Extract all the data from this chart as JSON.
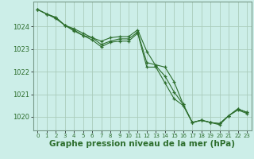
{
  "background_color": "#cceee8",
  "grid_color": "#aaccbb",
  "line_color": "#2d6e2d",
  "xlabel": "Graphe pression niveau de la mer (hPa)",
  "xlabel_fontsize": 7.5,
  "tick_fontsize": 6,
  "ylim": [
    1019.4,
    1025.1
  ],
  "xlim": [
    -0.5,
    23.5
  ],
  "yticks": [
    1020,
    1021,
    1022,
    1023,
    1024
  ],
  "xticks": [
    0,
    1,
    2,
    3,
    4,
    5,
    6,
    7,
    8,
    9,
    10,
    11,
    12,
    13,
    14,
    15,
    16,
    17,
    18,
    19,
    20,
    21,
    22,
    23
  ],
  "series": [
    [
      1024.75,
      1024.55,
      1024.4,
      1024.05,
      1023.9,
      1023.7,
      1023.5,
      1023.35,
      1023.5,
      1023.55,
      1023.55,
      1023.85,
      1022.9,
      1022.25,
      1021.8,
      1021.1,
      1020.55,
      1019.75,
      1019.85,
      1019.75,
      1019.7,
      1020.05,
      1020.35,
      1020.2
    ],
    [
      1024.75,
      1024.55,
      1024.4,
      1024.05,
      1023.85,
      1023.6,
      1023.5,
      1023.2,
      1023.35,
      1023.45,
      1023.45,
      1023.75,
      1022.4,
      1022.3,
      1022.2,
      1021.55,
      1020.55,
      1019.75,
      1019.85,
      1019.75,
      1019.7,
      1020.05,
      1020.35,
      1020.2
    ],
    [
      1024.75,
      1024.55,
      1024.35,
      1024.05,
      1023.8,
      1023.6,
      1023.4,
      1023.1,
      1023.3,
      1023.35,
      1023.35,
      1023.7,
      1022.2,
      1022.2,
      1021.5,
      1020.8,
      1020.5,
      1019.75,
      1019.85,
      1019.75,
      1019.65,
      1020.05,
      1020.3,
      1020.15
    ]
  ]
}
